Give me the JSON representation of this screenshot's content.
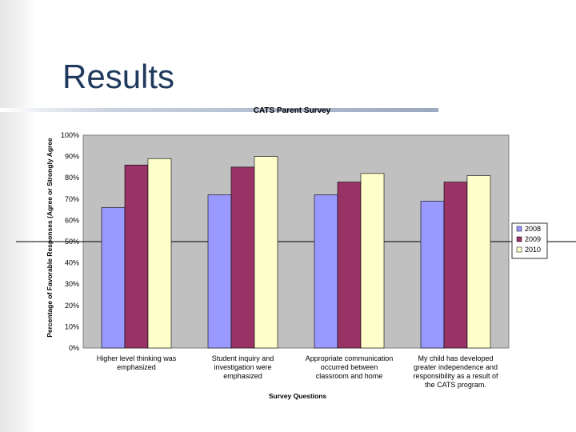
{
  "slide": {
    "title": "Results"
  },
  "chart_data": {
    "type": "bar",
    "title": "CATS Parent Survey",
    "xlabel": "Survey Questions",
    "ylabel": "Percentage of Favorable Responses (Agree or Strongly Agree",
    "ylim": [
      0,
      100
    ],
    "y_ticks": [
      "0%",
      "10%",
      "20%",
      "30%",
      "40%",
      "50%",
      "60%",
      "70%",
      "80%",
      "90%",
      "100%"
    ],
    "grid": "none",
    "legend_position": "right",
    "categories": [
      [
        "Higher level thinking was",
        "emphasized"
      ],
      [
        "Student inquiry and",
        "investigation were",
        "emphasized"
      ],
      [
        "Appropriate communication",
        "occurred between",
        "classroom and home"
      ],
      [
        "My child has developed",
        "greater independence and",
        "responsibility as a result of",
        "the CATS program."
      ]
    ],
    "series": [
      {
        "name": "2008",
        "color": "#9999ff",
        "values": [
          66,
          72,
          72,
          69
        ]
      },
      {
        "name": "2009",
        "color": "#993366",
        "values": [
          86,
          85,
          78,
          78
        ]
      },
      {
        "name": "2010",
        "color": "#ffffcc",
        "values": [
          89,
          90,
          82,
          81
        ]
      }
    ]
  }
}
